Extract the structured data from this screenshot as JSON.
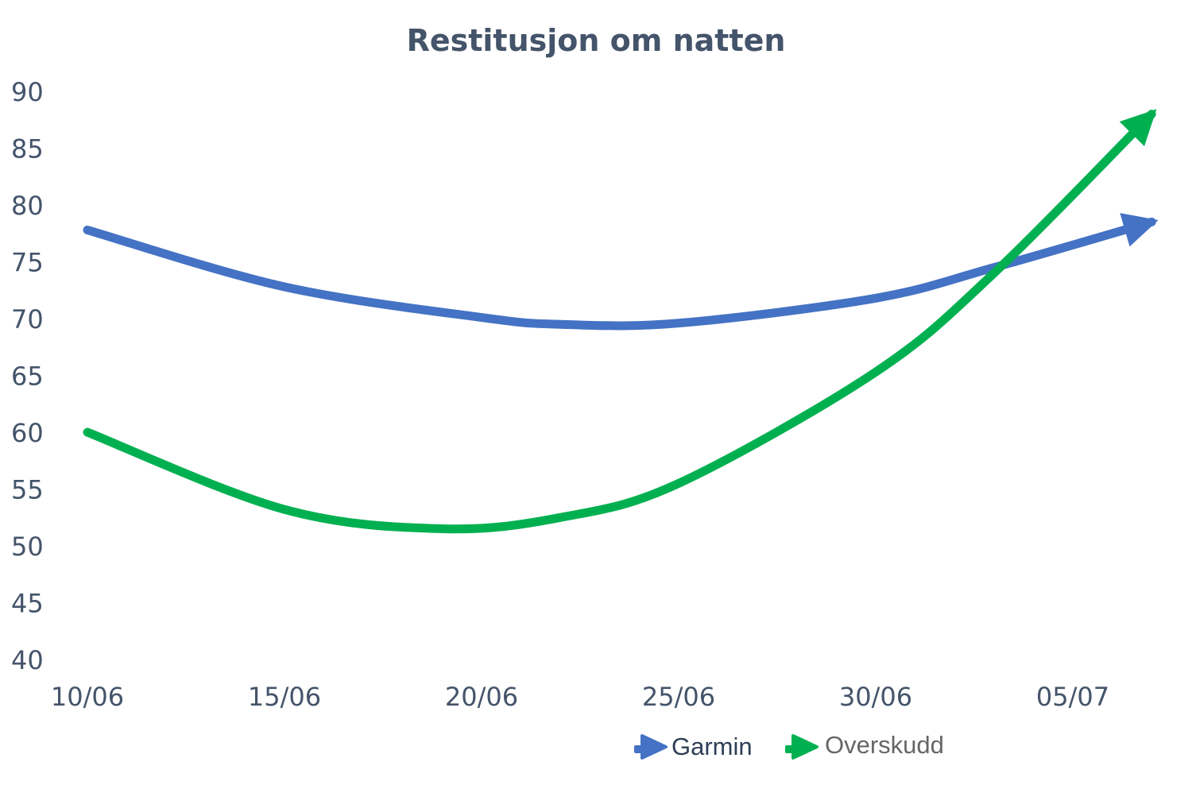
{
  "chart_data": {
    "type": "line",
    "title": "Restitusjon om natten",
    "xlabel": "",
    "ylabel": "",
    "x_ticks": [
      "10/06",
      "15/06",
      "20/06",
      "25/06",
      "30/06",
      "05/07"
    ],
    "y_ticks": [
      90,
      85,
      80,
      75,
      70,
      65,
      60,
      55,
      50,
      45,
      40
    ],
    "ylim": [
      40,
      90
    ],
    "grid": false,
    "legend_position": "bottom-right",
    "series": [
      {
        "name": "Garmin",
        "color": "#4472c4",
        "x": [
          "10/06",
          "15/06",
          "20/06",
          "22/06",
          "25/06",
          "30/06",
          "03/07",
          "07/07"
        ],
        "values": [
          77.8,
          72.8,
          70.1,
          69.5,
          69.6,
          71.8,
          74.5,
          78.5
        ]
      },
      {
        "name": "Overskudd",
        "color": "#00b050",
        "x": [
          "10/06",
          "15/06",
          "19/06",
          "22/06",
          "25/06",
          "30/06",
          "03/07",
          "07/07"
        ],
        "values": [
          60.0,
          53.2,
          51.5,
          52.5,
          55.5,
          65.3,
          74.0,
          88.0
        ]
      }
    ]
  }
}
